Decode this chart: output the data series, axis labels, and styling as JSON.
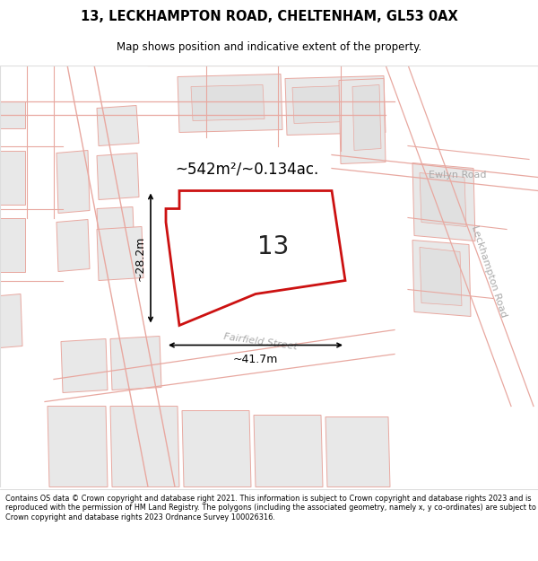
{
  "title_line1": "13, LECKHAMPTON ROAD, CHELTENHAM, GL53 0AX",
  "title_line2": "Map shows position and indicative extent of the property.",
  "footer_text": "Contains OS data © Crown copyright and database right 2021. This information is subject to Crown copyright and database rights 2023 and is reproduced with the permission of HM Land Registry. The polygons (including the associated geometry, namely x, y co-ordinates) are subject to Crown copyright and database rights 2023 Ordnance Survey 100026316.",
  "map_bg": "#ffffff",
  "block_fill": "#e8e8e8",
  "block_edge": "#e8a8a0",
  "road_color": "#e8a8a0",
  "highlight_fill": "#ffffff",
  "highlight_edge": "#cc1111",
  "area_label": "~542m²/~0.134ac.",
  "plot_number": "13",
  "dim_width": "~41.7m",
  "dim_height": "~28.2m",
  "road_label_1": "Fairfield Street",
  "road_label_2": "Ewlyn Road",
  "road_label_3": "Leckhampton Road"
}
